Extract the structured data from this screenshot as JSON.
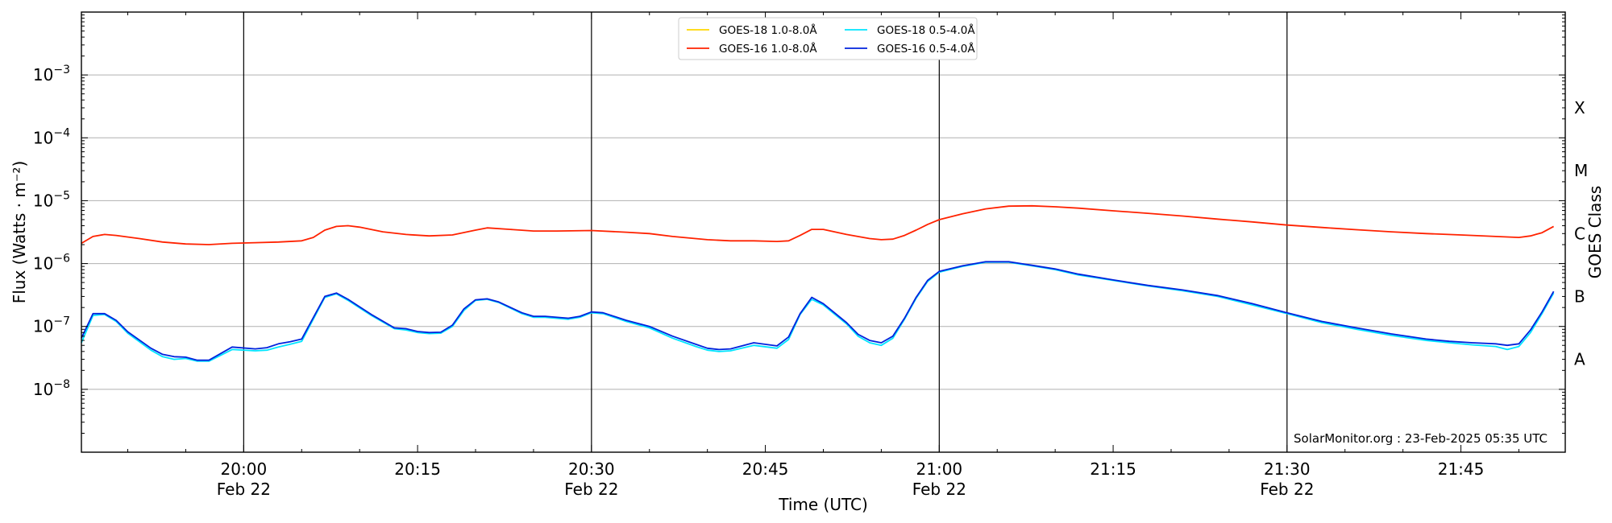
{
  "chart_data": {
    "type": "line",
    "xlabel": "Time (UTC)",
    "ylabel": "Flux (Watts · m⁻²)",
    "ylabel_right": "GOES Class",
    "yscale": "log",
    "x_unit": "UTC time (HH:MM)",
    "xlim": [
      "19:46",
      "21:54"
    ],
    "ylim": [
      1e-09,
      0.01
    ],
    "x_ticks": [
      {
        "time": "20:00",
        "label": "20:00",
        "date": "Feb 22"
      },
      {
        "time": "20:15",
        "label": "20:15",
        "date": ""
      },
      {
        "time": "20:30",
        "label": "20:30",
        "date": "Feb 22"
      },
      {
        "time": "20:45",
        "label": "20:45",
        "date": ""
      },
      {
        "time": "21:00",
        "label": "21:00",
        "date": "Feb 22"
      },
      {
        "time": "21:15",
        "label": "21:15",
        "date": ""
      },
      {
        "time": "21:30",
        "label": "21:30",
        "date": "Feb 22"
      },
      {
        "time": "21:45",
        "label": "21:45",
        "date": ""
      }
    ],
    "vertical_lines_at": [
      "20:00",
      "20:30",
      "21:00",
      "21:30"
    ],
    "y_ticks": [
      {
        "value": 1e-08,
        "base": "10",
        "exp": "−8"
      },
      {
        "value": 1e-07,
        "base": "10",
        "exp": "−7"
      },
      {
        "value": 1e-06,
        "base": "10",
        "exp": "−6"
      },
      {
        "value": 1e-05,
        "base": "10",
        "exp": "−5"
      },
      {
        "value": 0.0001,
        "base": "10",
        "exp": "−4"
      },
      {
        "value": 0.001,
        "base": "10",
        "exp": "−3"
      }
    ],
    "grid": "horizontal",
    "goes_classes": [
      {
        "label": "A",
        "value": 3e-08
      },
      {
        "label": "B",
        "value": 3e-07
      },
      {
        "label": "C",
        "value": 3e-06
      },
      {
        "label": "M",
        "value": 3e-05
      },
      {
        "label": "X",
        "value": 0.0003
      }
    ],
    "legend_position": "top-center",
    "credit": "SolarMonitor.org : 23-Feb-2025 05:35 UTC",
    "series": [
      {
        "name": "GOES-18 1.0-8.0Å",
        "color": "#FFD700",
        "points": []
      },
      {
        "name": "GOES-16 1.0-8.0Å",
        "color": "#FF2200",
        "points": [
          [
            "19:46",
            2.1e-06
          ],
          [
            "19:47",
            2.7e-06
          ],
          [
            "19:48",
            2.9e-06
          ],
          [
            "19:49",
            2.8e-06
          ],
          [
            "19:51",
            2.5e-06
          ],
          [
            "19:53",
            2.2e-06
          ],
          [
            "19:55",
            2.05e-06
          ],
          [
            "19:57",
            2e-06
          ],
          [
            "19:59",
            2.1e-06
          ],
          [
            "20:01",
            2.15e-06
          ],
          [
            "20:03",
            2.2e-06
          ],
          [
            "20:05",
            2.3e-06
          ],
          [
            "20:06",
            2.6e-06
          ],
          [
            "20:07",
            3.4e-06
          ],
          [
            "20:08",
            3.9e-06
          ],
          [
            "20:09",
            4e-06
          ],
          [
            "20:10",
            3.8e-06
          ],
          [
            "20:12",
            3.2e-06
          ],
          [
            "20:14",
            2.9e-06
          ],
          [
            "20:16",
            2.75e-06
          ],
          [
            "20:18",
            2.85e-06
          ],
          [
            "20:20",
            3.4e-06
          ],
          [
            "20:21",
            3.7e-06
          ],
          [
            "20:23",
            3.5e-06
          ],
          [
            "20:25",
            3.3e-06
          ],
          [
            "20:27",
            3.3e-06
          ],
          [
            "20:30",
            3.35e-06
          ],
          [
            "20:33",
            3.15e-06
          ],
          [
            "20:35",
            3e-06
          ],
          [
            "20:37",
            2.7e-06
          ],
          [
            "20:40",
            2.4e-06
          ],
          [
            "20:42",
            2.3e-06
          ],
          [
            "20:44",
            2.3e-06
          ],
          [
            "20:46",
            2.25e-06
          ],
          [
            "20:47",
            2.3e-06
          ],
          [
            "20:48",
            2.8e-06
          ],
          [
            "20:49",
            3.5e-06
          ],
          [
            "20:50",
            3.5e-06
          ],
          [
            "20:52",
            2.9e-06
          ],
          [
            "20:54",
            2.5e-06
          ],
          [
            "20:55",
            2.4e-06
          ],
          [
            "20:56",
            2.45e-06
          ],
          [
            "20:57",
            2.8e-06
          ],
          [
            "20:58",
            3.4e-06
          ],
          [
            "20:59",
            4.2e-06
          ],
          [
            "21:00",
            5e-06
          ],
          [
            "21:02",
            6.2e-06
          ],
          [
            "21:04",
            7.4e-06
          ],
          [
            "21:06",
            8.2e-06
          ],
          [
            "21:08",
            8.3e-06
          ],
          [
            "21:10",
            8e-06
          ],
          [
            "21:12",
            7.6e-06
          ],
          [
            "21:15",
            6.9e-06
          ],
          [
            "21:18",
            6.3e-06
          ],
          [
            "21:21",
            5.7e-06
          ],
          [
            "21:24",
            5.1e-06
          ],
          [
            "21:27",
            4.6e-06
          ],
          [
            "21:30",
            4.1e-06
          ],
          [
            "21:33",
            3.75e-06
          ],
          [
            "21:36",
            3.45e-06
          ],
          [
            "21:39",
            3.2e-06
          ],
          [
            "21:42",
            3e-06
          ],
          [
            "21:45",
            2.85e-06
          ],
          [
            "21:48",
            2.7e-06
          ],
          [
            "21:50",
            2.6e-06
          ],
          [
            "21:51",
            2.75e-06
          ],
          [
            "21:52",
            3.1e-06
          ],
          [
            "21:53",
            3.9e-06
          ]
        ]
      },
      {
        "name": "GOES-18 0.5-4.0Å",
        "color": "#00E5FF",
        "points": [
          [
            "19:46",
            5.5e-08
          ],
          [
            "19:47",
            1.5e-07
          ],
          [
            "19:48",
            1.55e-07
          ],
          [
            "19:49",
            1.2e-07
          ],
          [
            "19:50",
            7.8e-08
          ],
          [
            "19:52",
            4.2e-08
          ],
          [
            "19:53",
            3.3e-08
          ],
          [
            "19:54",
            3e-08
          ],
          [
            "19:55",
            3.1e-08
          ],
          [
            "19:56",
            2.8e-08
          ],
          [
            "19:57",
            2.8e-08
          ],
          [
            "19:59",
            4.3e-08
          ],
          [
            "20:01",
            4.1e-08
          ],
          [
            "20:02",
            4.2e-08
          ],
          [
            "20:03",
            4.7e-08
          ],
          [
            "20:04",
            5.2e-08
          ],
          [
            "20:05",
            5.8e-08
          ],
          [
            "20:07",
            2.9e-07
          ],
          [
            "20:08",
            3.3e-07
          ],
          [
            "20:09",
            2.6e-07
          ],
          [
            "20:11",
            1.5e-07
          ],
          [
            "20:13",
            9.2e-08
          ],
          [
            "20:14",
            8.8e-08
          ],
          [
            "20:15",
            8e-08
          ],
          [
            "20:16",
            7.7e-08
          ],
          [
            "20:17",
            7.8e-08
          ],
          [
            "20:18",
            1e-07
          ],
          [
            "20:19",
            1.8e-07
          ],
          [
            "20:20",
            2.6e-07
          ],
          [
            "20:21",
            2.7e-07
          ],
          [
            "20:22",
            2.4e-07
          ],
          [
            "20:24",
            1.6e-07
          ],
          [
            "20:25",
            1.4e-07
          ],
          [
            "20:26",
            1.4e-07
          ],
          [
            "20:28",
            1.3e-07
          ],
          [
            "20:29",
            1.4e-07
          ],
          [
            "20:30",
            1.65e-07
          ],
          [
            "20:31",
            1.6e-07
          ],
          [
            "20:33",
            1.2e-07
          ],
          [
            "20:35",
            9.5e-08
          ],
          [
            "20:37",
            6.5e-08
          ],
          [
            "20:39",
            4.8e-08
          ],
          [
            "20:40",
            4.2e-08
          ],
          [
            "20:41",
            4e-08
          ],
          [
            "20:42",
            4.1e-08
          ],
          [
            "20:44",
            5e-08
          ],
          [
            "20:46",
            4.5e-08
          ],
          [
            "20:47",
            6.2e-08
          ],
          [
            "20:48",
            1.55e-07
          ],
          [
            "20:49",
            2.7e-07
          ],
          [
            "20:50",
            2.2e-07
          ],
          [
            "20:52",
            1.1e-07
          ],
          [
            "20:53",
            7e-08
          ],
          [
            "20:54",
            5.5e-08
          ],
          [
            "20:55",
            5e-08
          ],
          [
            "20:56",
            6.5e-08
          ],
          [
            "20:57",
            1.3e-07
          ],
          [
            "20:58",
            2.8e-07
          ],
          [
            "20:59",
            5.2e-07
          ],
          [
            "21:00",
            7.3e-07
          ],
          [
            "21:02",
            9e-07
          ],
          [
            "21:04",
            1.05e-06
          ],
          [
            "21:06",
            1.05e-06
          ],
          [
            "21:08",
            9.2e-07
          ],
          [
            "21:10",
            8e-07
          ],
          [
            "21:12",
            6.6e-07
          ],
          [
            "21:15",
            5.4e-07
          ],
          [
            "21:18",
            4.4e-07
          ],
          [
            "21:21",
            3.7e-07
          ],
          [
            "21:24",
            3e-07
          ],
          [
            "21:27",
            2.2e-07
          ],
          [
            "21:30",
            1.6e-07
          ],
          [
            "21:33",
            1.15e-07
          ],
          [
            "21:36",
            9e-08
          ],
          [
            "21:39",
            7.2e-08
          ],
          [
            "21:42",
            6e-08
          ],
          [
            "21:44",
            5.5e-08
          ],
          [
            "21:46",
            5.1e-08
          ],
          [
            "21:48",
            4.8e-08
          ],
          [
            "21:49",
            4.3e-08
          ],
          [
            "21:50",
            4.8e-08
          ],
          [
            "21:51",
            8e-08
          ],
          [
            "21:52",
            1.6e-07
          ],
          [
            "21:53",
            3.4e-07
          ]
        ]
      },
      {
        "name": "GOES-16 0.5-4.0Å",
        "color": "#0022DD",
        "points": [
          [
            "19:46",
            6.5e-08
          ],
          [
            "19:47",
            1.6e-07
          ],
          [
            "19:48",
            1.6e-07
          ],
          [
            "19:49",
            1.25e-07
          ],
          [
            "19:50",
            8.2e-08
          ],
          [
            "19:52",
            4.5e-08
          ],
          [
            "19:53",
            3.6e-08
          ],
          [
            "19:54",
            3.3e-08
          ],
          [
            "19:55",
            3.25e-08
          ],
          [
            "19:56",
            2.9e-08
          ],
          [
            "19:57",
            2.9e-08
          ],
          [
            "19:59",
            4.7e-08
          ],
          [
            "20:01",
            4.4e-08
          ],
          [
            "20:02",
            4.6e-08
          ],
          [
            "20:03",
            5.3e-08
          ],
          [
            "20:04",
            5.7e-08
          ],
          [
            "20:05",
            6.3e-08
          ],
          [
            "20:07",
            3e-07
          ],
          [
            "20:08",
            3.4e-07
          ],
          [
            "20:09",
            2.7e-07
          ],
          [
            "20:11",
            1.55e-07
          ],
          [
            "20:13",
            9.5e-08
          ],
          [
            "20:14",
            9.2e-08
          ],
          [
            "20:15",
            8.3e-08
          ],
          [
            "20:16",
            8e-08
          ],
          [
            "20:17",
            8.1e-08
          ],
          [
            "20:18",
            1.05e-07
          ],
          [
            "20:19",
            1.9e-07
          ],
          [
            "20:20",
            2.65e-07
          ],
          [
            "20:21",
            2.75e-07
          ],
          [
            "20:22",
            2.45e-07
          ],
          [
            "20:24",
            1.65e-07
          ],
          [
            "20:25",
            1.45e-07
          ],
          [
            "20:26",
            1.45e-07
          ],
          [
            "20:28",
            1.35e-07
          ],
          [
            "20:29",
            1.45e-07
          ],
          [
            "20:30",
            1.7e-07
          ],
          [
            "20:31",
            1.65e-07
          ],
          [
            "20:33",
            1.25e-07
          ],
          [
            "20:35",
            1e-07
          ],
          [
            "20:37",
            7e-08
          ],
          [
            "20:39",
            5.2e-08
          ],
          [
            "20:40",
            4.5e-08
          ],
          [
            "20:41",
            4.3e-08
          ],
          [
            "20:42",
            4.4e-08
          ],
          [
            "20:44",
            5.5e-08
          ],
          [
            "20:46",
            4.9e-08
          ],
          [
            "20:47",
            6.8e-08
          ],
          [
            "20:48",
            1.6e-07
          ],
          [
            "20:49",
            2.9e-07
          ],
          [
            "20:50",
            2.3e-07
          ],
          [
            "20:52",
            1.15e-07
          ],
          [
            "20:53",
            7.5e-08
          ],
          [
            "20:54",
            6e-08
          ],
          [
            "20:55",
            5.5e-08
          ],
          [
            "20:56",
            7e-08
          ],
          [
            "20:57",
            1.35e-07
          ],
          [
            "20:58",
            2.9e-07
          ],
          [
            "20:59",
            5.4e-07
          ],
          [
            "21:00",
            7.5e-07
          ],
          [
            "21:02",
            9.2e-07
          ],
          [
            "21:04",
            1.07e-06
          ],
          [
            "21:06",
            1.07e-06
          ],
          [
            "21:08",
            9.4e-07
          ],
          [
            "21:10",
            8.2e-07
          ],
          [
            "21:12",
            6.8e-07
          ],
          [
            "21:15",
            5.5e-07
          ],
          [
            "21:18",
            4.5e-07
          ],
          [
            "21:21",
            3.8e-07
          ],
          [
            "21:24",
            3.1e-07
          ],
          [
            "21:27",
            2.3e-07
          ],
          [
            "21:30",
            1.65e-07
          ],
          [
            "21:33",
            1.2e-07
          ],
          [
            "21:36",
            9.5e-08
          ],
          [
            "21:39",
            7.6e-08
          ],
          [
            "21:42",
            6.3e-08
          ],
          [
            "21:44",
            5.8e-08
          ],
          [
            "21:46",
            5.5e-08
          ],
          [
            "21:48",
            5.3e-08
          ],
          [
            "21:49",
            5e-08
          ],
          [
            "21:50",
            5.3e-08
          ],
          [
            "21:51",
            8.8e-08
          ],
          [
            "21:52",
            1.7e-07
          ],
          [
            "21:53",
            3.6e-07
          ]
        ]
      }
    ]
  }
}
